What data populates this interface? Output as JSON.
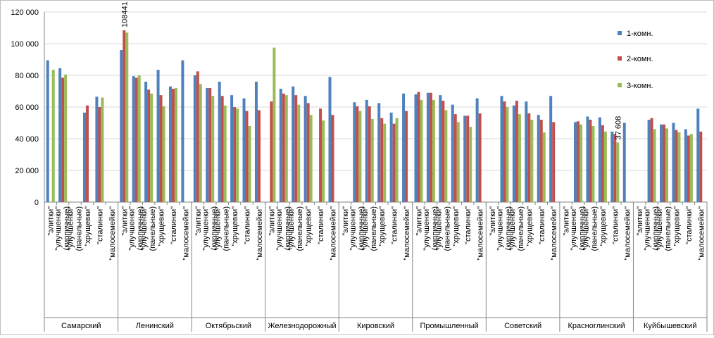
{
  "chart_data": {
    "type": "bar",
    "title": "",
    "xlabel": "",
    "ylabel": "",
    "ylim": [
      0,
      120000
    ],
    "yticks": [
      0,
      20000,
      40000,
      60000,
      80000,
      100000,
      120000
    ],
    "ytick_labels": [
      "0",
      "20 000",
      "40 000",
      "60 000",
      "80 000",
      "100 000",
      "120 000"
    ],
    "grid": true,
    "legend_position": "right",
    "series_colors": [
      "#4f81bd",
      "#c0504d",
      "#9bbb59"
    ],
    "legend": [
      "1-комн.",
      "2-комн.",
      "3-комн."
    ],
    "types": [
      "\"элитки\"",
      "\"улучшенки\" (кирпичные)",
      "\"улучшенки\" (панельные)",
      "\"хрущевки\"",
      "\"сталинки\"",
      "\"малосемейки\""
    ],
    "districts": [
      {
        "name": "Самарский",
        "values": [
          [
            89500,
            0,
            83500
          ],
          [
            84500,
            78500,
            80500
          ],
          [
            0,
            0,
            0
          ],
          [
            56500,
            61000,
            0
          ],
          [
            66500,
            60000,
            66000
          ],
          [
            0,
            0,
            0
          ]
        ]
      },
      {
        "name": "Ленинский",
        "values": [
          [
            96000,
            108441,
            107000
          ],
          [
            79500,
            78500,
            80000
          ],
          [
            76000,
            71000,
            68500
          ],
          [
            83500,
            67500,
            60500
          ],
          [
            73000,
            71500,
            72000
          ],
          [
            89500,
            0,
            0
          ]
        ]
      },
      {
        "name": "Октябрьский",
        "values": [
          [
            80000,
            82500,
            74500
          ],
          [
            72000,
            72000,
            67000
          ],
          [
            76000,
            67000,
            61000
          ],
          [
            67500,
            60000,
            59000
          ],
          [
            65500,
            57500,
            48000
          ],
          [
            76000,
            58000,
            0
          ]
        ]
      },
      {
        "name": "Железнодорожный",
        "values": [
          [
            0,
            63500,
            97500
          ],
          [
            71500,
            68500,
            67500
          ],
          [
            73000,
            67500,
            61500
          ],
          [
            67000,
            62500,
            55000
          ],
          [
            0,
            59000,
            51500
          ],
          [
            79000,
            55000,
            0
          ]
        ]
      },
      {
        "name": "Кировский",
        "values": [
          [
            0,
            0,
            0
          ],
          [
            63000,
            60500,
            57500
          ],
          [
            64500,
            60500,
            52500
          ],
          [
            62500,
            53000,
            49500
          ],
          [
            56500,
            49500,
            53000
          ],
          [
            68500,
            57500,
            0
          ]
        ]
      },
      {
        "name": "Промышленный",
        "values": [
          [
            68000,
            69500,
            64500
          ],
          [
            69000,
            69000,
            64500
          ],
          [
            67500,
            64000,
            58000
          ],
          [
            61500,
            55500,
            50500
          ],
          [
            54500,
            54500,
            47500
          ],
          [
            65500,
            56000,
            0
          ]
        ]
      },
      {
        "name": "Советский",
        "values": [
          [
            0,
            0,
            0
          ],
          [
            67000,
            63500,
            60000
          ],
          [
            61000,
            64000,
            55500
          ],
          [
            63500,
            56000,
            52000
          ],
          [
            55000,
            52000,
            44000
          ],
          [
            67000,
            50500,
            0
          ]
        ]
      },
      {
        "name": "Красноглинский",
        "values": [
          [
            0,
            0,
            0
          ],
          [
            50500,
            51000,
            49000
          ],
          [
            54000,
            52000,
            48000
          ],
          [
            53500,
            48500,
            44500
          ],
          [
            44500,
            43000,
            37608
          ],
          [
            50000,
            0,
            0
          ]
        ]
      },
      {
        "name": "Куйбышевский",
        "values": [
          [
            0,
            0,
            0
          ],
          [
            52000,
            53000,
            46000
          ],
          [
            49000,
            49000,
            46500
          ],
          [
            50000,
            45500,
            44000
          ],
          [
            46000,
            42000,
            43000
          ],
          [
            59000,
            44500,
            0
          ]
        ]
      }
    ],
    "annotations": [
      "108441",
      "37 608"
    ]
  }
}
